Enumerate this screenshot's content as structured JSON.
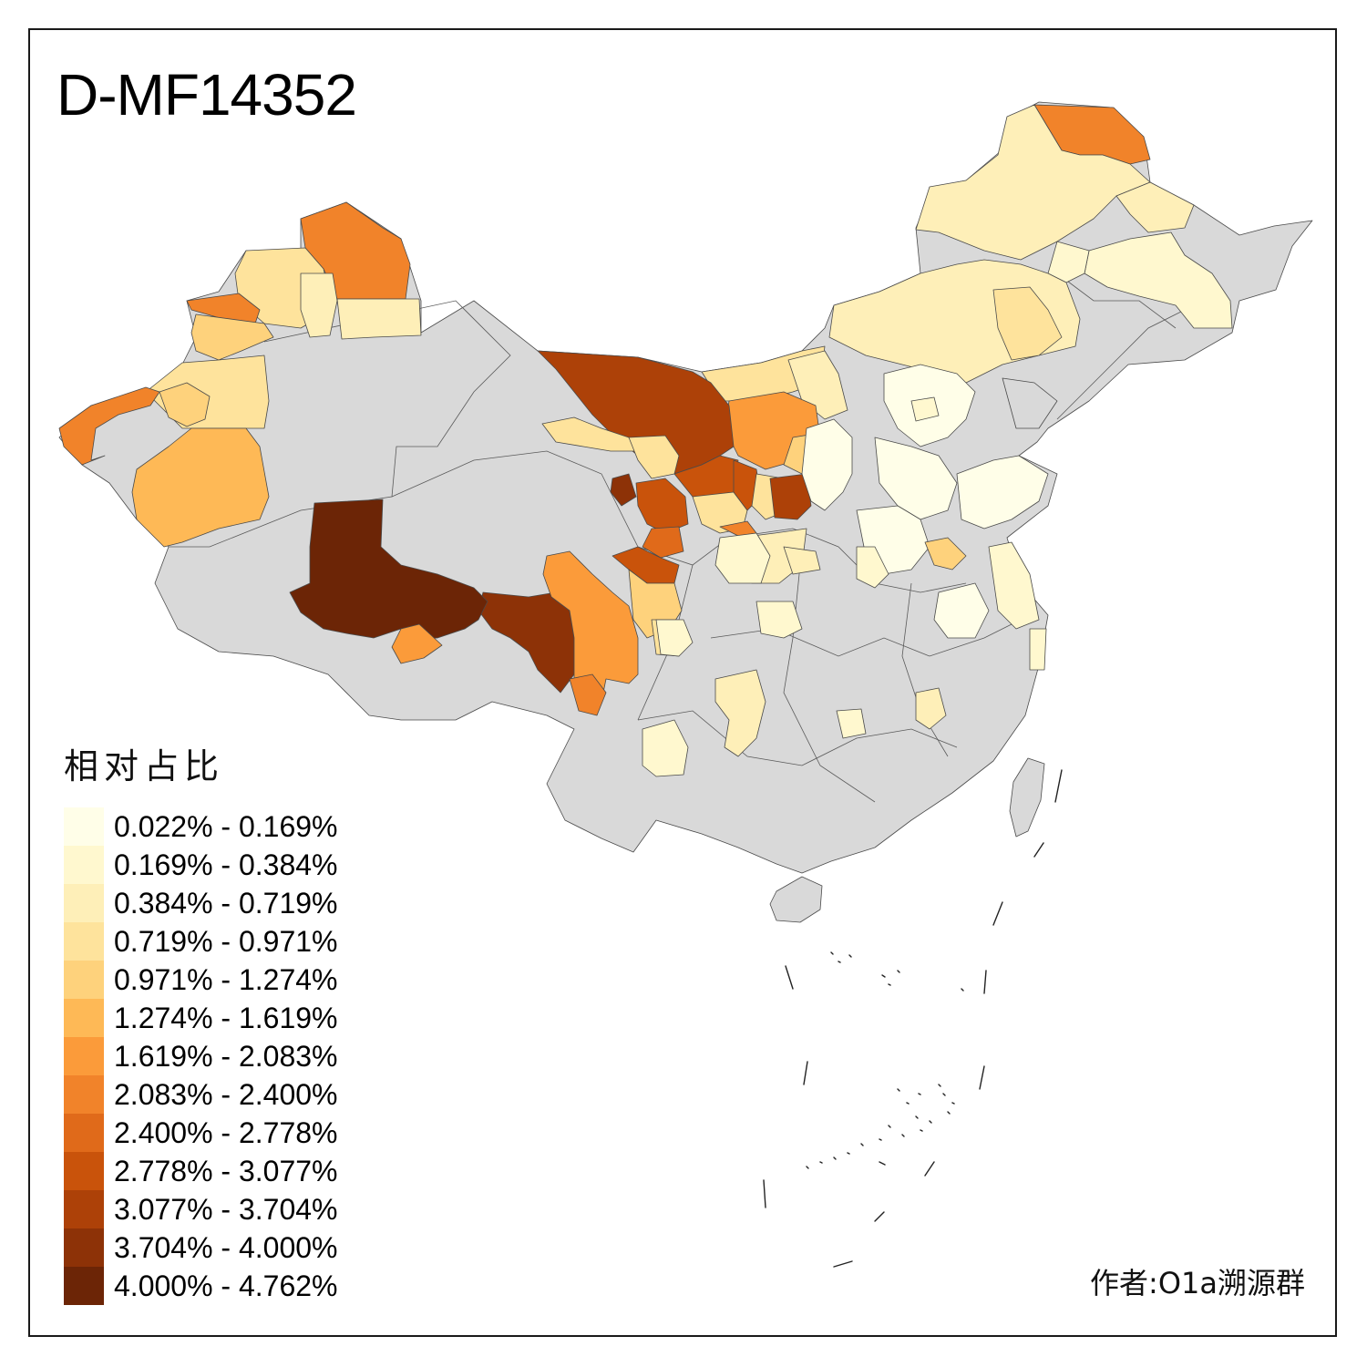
{
  "title": "D-MF14352",
  "legend": {
    "title": "相对占比",
    "items": [
      {
        "label": "0.022% - 0.169%",
        "color": "#FFFEE8"
      },
      {
        "label": "0.169% - 0.384%",
        "color": "#FFF8CF"
      },
      {
        "label": "0.384% - 0.719%",
        "color": "#FEEFB8"
      },
      {
        "label": "0.719% - 0.971%",
        "color": "#FEE39C"
      },
      {
        "label": "0.971% - 1.274%",
        "color": "#FED27C"
      },
      {
        "label": "1.274% - 1.619%",
        "color": "#FEB956"
      },
      {
        "label": "1.619% - 2.083%",
        "color": "#FB9B3A"
      },
      {
        "label": "2.083% - 2.400%",
        "color": "#F1832A"
      },
      {
        "label": "2.400% - 2.778%",
        "color": "#E06A1A"
      },
      {
        "label": "2.778% - 3.077%",
        "color": "#C9530B"
      },
      {
        "label": "3.077% - 3.704%",
        "color": "#AD4108"
      },
      {
        "label": "3.704% - 4.000%",
        "color": "#8D3207"
      },
      {
        "label": "4.000% - 4.762%",
        "color": "#6C2506"
      }
    ]
  },
  "no_data_color": "#D9D9D9",
  "credit": "作者:O1a溯源群"
}
